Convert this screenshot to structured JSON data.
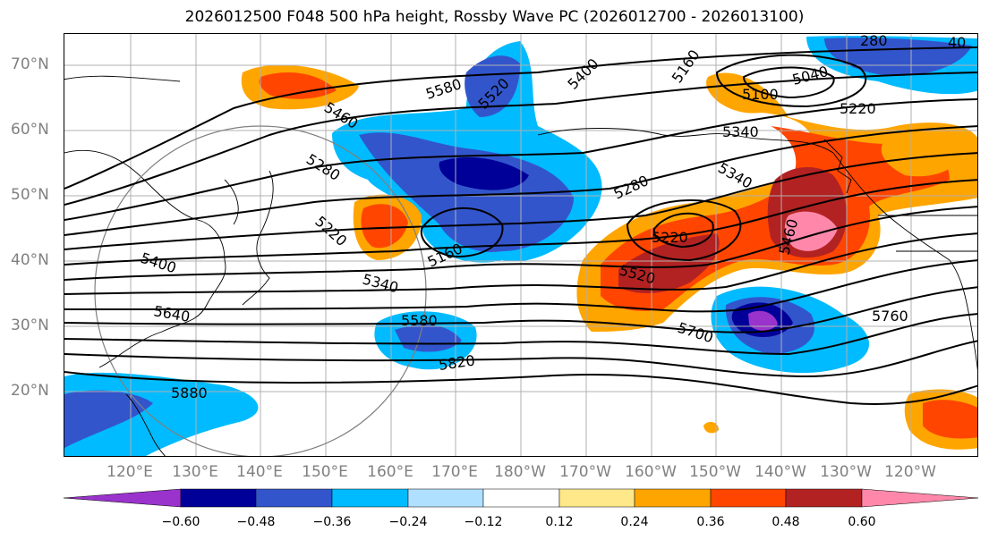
{
  "title": "2026012500 F048 500 hPa height, Rossby Wave PC (2026012700 - 2026013100)",
  "lat_labels": [
    "70°N",
    "60°N",
    "50°N",
    "40°N",
    "30°N",
    "20°N"
  ],
  "lon_labels": [
    "120°E",
    "130°E",
    "140°E",
    "150°E",
    "160°E",
    "170°E",
    "180°W",
    "170°W",
    "160°W",
    "150°W",
    "140°W",
    "130°W",
    "120°W"
  ],
  "contour_labels": [
    "5580",
    "5520",
    "5400",
    "5160",
    "5040",
    "5100",
    "5220",
    "5460",
    "5340",
    "5280",
    "5280",
    "5340",
    "5220",
    "5160",
    "5220",
    "5460",
    "5400",
    "5340",
    "5520",
    "5640",
    "5580",
    "5700",
    "5760",
    "5820",
    "5880",
    "280",
    "40"
  ],
  "colorbar": {
    "ticks": [
      "−0.60",
      "−0.48",
      "−0.36",
      "−0.24",
      "−0.12",
      "0.12",
      "0.24",
      "0.36",
      "0.48",
      "0.60"
    ],
    "colors": [
      "#9933cc",
      "#000099",
      "#3355cc",
      "#00bbff",
      "#b0e0ff",
      "#ffffff",
      "#ffe88a",
      "#ffa500",
      "#ff4500",
      "#b22222",
      "#ff88aa"
    ]
  }
}
